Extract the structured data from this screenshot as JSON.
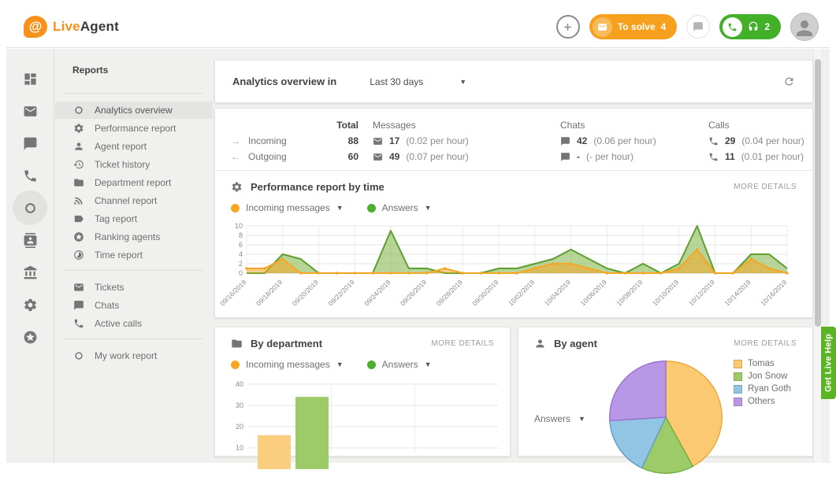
{
  "topbar": {
    "brand_live": "Live",
    "brand_agent": "Agent",
    "logo_glyph": "@",
    "to_solve_label": "To solve",
    "to_solve_count": "4",
    "calls_count": "2",
    "icons": [
      "plus-icon",
      "mail-icon",
      "chat-icon",
      "phone-icon",
      "headset-icon",
      "avatar"
    ]
  },
  "rail": {
    "items": [
      {
        "icon": "dashboard"
      },
      {
        "icon": "mail"
      },
      {
        "icon": "chat"
      },
      {
        "icon": "phone"
      },
      {
        "icon": "circle",
        "active": true
      },
      {
        "icon": "contacts"
      },
      {
        "icon": "bank"
      },
      {
        "icon": "gear"
      },
      {
        "icon": "stars"
      }
    ]
  },
  "sidebar": {
    "title": "Reports",
    "groups": [
      [
        {
          "label": "Analytics overview",
          "icon": "circle",
          "active": true
        },
        {
          "label": "Performance report",
          "icon": "gear"
        },
        {
          "label": "Agent report",
          "icon": "person"
        },
        {
          "label": "Ticket history",
          "icon": "history"
        },
        {
          "label": "Department report",
          "icon": "folder"
        },
        {
          "label": "Channel report",
          "icon": "rss"
        },
        {
          "label": "Tag report",
          "icon": "tag"
        },
        {
          "label": "Ranking agents",
          "icon": "stars"
        },
        {
          "label": "Time report",
          "icon": "timelapse"
        }
      ],
      [
        {
          "label": "Tickets",
          "icon": "mail"
        },
        {
          "label": "Chats",
          "icon": "chat"
        },
        {
          "label": "Active calls",
          "icon": "phone"
        }
      ],
      [
        {
          "label": "My work report",
          "icon": "circle"
        }
      ]
    ]
  },
  "overview": {
    "title": "Analytics overview in",
    "range": "Last 30 days"
  },
  "stats": {
    "headers": {
      "total": "Total",
      "messages": "Messages",
      "chats": "Chats",
      "calls": "Calls"
    },
    "rows": [
      {
        "arrow": "→",
        "label": "Incoming",
        "total": "88",
        "messages_value": "17",
        "messages_rate": "(0.02 per hour)",
        "chats_value": "42",
        "chats_rate": "(0.06 per hour)",
        "calls_value": "29",
        "calls_rate": "(0.04 per hour)"
      },
      {
        "arrow": "←",
        "label": "Outgoing",
        "total": "60",
        "messages_value": "49",
        "messages_rate": "(0.07 per hour)",
        "chats_value": "-",
        "chats_rate": "(- per hour)",
        "calls_value": "11",
        "calls_rate": "(0.01 per hour)"
      }
    ]
  },
  "performance": {
    "title": "Performance report by time",
    "more_details": "MORE DETAILS"
  },
  "by_department": {
    "title": "By department",
    "more_details": "MORE DETAILS"
  },
  "by_agent": {
    "title": "By agent",
    "more_details": "MORE DETAILS",
    "dropdown": "Answers"
  },
  "legend": {
    "incoming": "Incoming messages",
    "answers": "Answers"
  },
  "colors": {
    "incoming": "#f5a623",
    "answers": "#58a813",
    "incoming_fill": "#f6c35e",
    "answers_fill": "#a8d47f",
    "brand_orange": "#f6911e",
    "pill_green": "#43b02a",
    "help_green": "#5cb324"
  },
  "get_live_help": "Get Live Help",
  "chart_data": [
    {
      "type": "area",
      "title": "Performance report by time",
      "x": [
        "09/16/2019",
        "09/17/2019",
        "09/18/2019",
        "09/19/2019",
        "09/20/2019",
        "09/21/2019",
        "09/22/2019",
        "09/23/2019",
        "09/24/2019",
        "09/25/2019",
        "09/26/2019",
        "09/27/2019",
        "09/28/2019",
        "09/29/2019",
        "09/30/2019",
        "10/01/2019",
        "10/02/2019",
        "10/03/2019",
        "10/04/2019",
        "10/05/2019",
        "10/06/2019",
        "10/07/2019",
        "10/08/2019",
        "10/09/2019",
        "10/10/2019",
        "10/11/2019",
        "10/12/2019",
        "10/13/2019",
        "10/14/2019",
        "10/15/2019",
        "10/16/2019"
      ],
      "x_label_every": 2,
      "series": [
        {
          "name": "Incoming messages",
          "color": "#f5a623",
          "values": [
            1,
            1,
            3,
            0,
            0,
            0,
            0,
            0,
            0,
            0,
            0,
            1,
            0,
            0,
            0,
            0,
            1,
            2,
            2,
            1,
            0,
            0,
            0,
            0,
            1,
            5,
            0,
            0,
            3,
            1,
            0
          ]
        },
        {
          "name": "Answers",
          "color": "#58a813",
          "values": [
            0,
            0,
            4,
            3,
            0,
            0,
            0,
            0,
            9,
            1,
            1,
            0,
            0,
            0,
            1,
            1,
            2,
            3,
            5,
            3,
            1,
            0,
            2,
            0,
            2,
            10,
            0,
            0,
            4,
            4,
            1
          ]
        }
      ],
      "ylim": [
        0,
        10
      ],
      "yticks": [
        0,
        2,
        4,
        6,
        8,
        10
      ],
      "grid": true,
      "legend_position": "top"
    },
    {
      "type": "bar",
      "title": "By department",
      "categories": [
        ""
      ],
      "series": [
        {
          "name": "Incoming messages",
          "color": "#fbce7f",
          "values": [
            16
          ]
        },
        {
          "name": "Answers",
          "color": "#9ccb67",
          "values": [
            34
          ]
        }
      ],
      "ylim": [
        0,
        40
      ],
      "yticks": [
        10,
        20,
        30,
        40
      ],
      "grid": true,
      "legend_position": "top"
    },
    {
      "type": "pie",
      "title": "By agent",
      "metric": "Answers",
      "labels": [
        "Tomas",
        "Jon Snow",
        "Ryan Goth",
        "Others"
      ],
      "values": [
        42,
        15,
        17,
        26
      ],
      "colors": [
        "#fbca70",
        "#9ccb67",
        "#92c4e4",
        "#b897e6"
      ],
      "legend_position": "right"
    }
  ]
}
